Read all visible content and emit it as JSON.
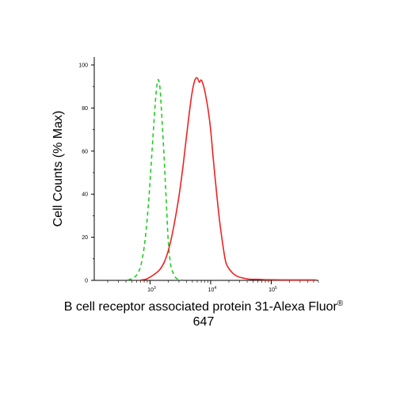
{
  "chart_data": {
    "type": "line",
    "title": "",
    "xlabel": "B cell receptor associated protein 31-Alexa Fluor",
    "xlabel_superscript": "®",
    "xlabel_line2": "647",
    "ylabel": "Cell Counts (% Max)",
    "x_scale": "log",
    "xlim": [
      120,
      600000
    ],
    "ylim": [
      0,
      100
    ],
    "y_ticks": [
      "0",
      "20",
      "40",
      "60",
      "80",
      "100"
    ],
    "x_ticks": [
      {
        "value": 1000,
        "base": "10",
        "exp": "3"
      },
      {
        "value": 10000,
        "base": "10",
        "exp": "4"
      },
      {
        "value": 100000,
        "base": "10",
        "exp": "5"
      }
    ],
    "grid": false,
    "legend": "none",
    "series": [
      {
        "color": "#22cc22",
        "style": "dashed",
        "x": [
          430,
          520,
          620,
          720,
          830,
          950,
          1050,
          1150,
          1250,
          1350,
          1450,
          1550,
          1700,
          1850,
          2000,
          2200,
          2450,
          2700,
          3000,
          3400
        ],
        "y": [
          0,
          1,
          3,
          8,
          19,
          37,
          55,
          72,
          86,
          93,
          90,
          78,
          58,
          37,
          18,
          7,
          3,
          1,
          0.5,
          0
        ]
      },
      {
        "color": "#ee2222",
        "style": "solid",
        "x": [
          700,
          850,
          1000,
          1200,
          1450,
          1750,
          2100,
          2500,
          3000,
          3500,
          4000,
          4500,
          5000,
          5500,
          6000,
          6500,
          7000,
          7500,
          8000,
          8500,
          9000,
          10000,
          11000,
          12500,
          14000,
          16000,
          18000,
          22000,
          27000,
          35000,
          45000,
          60000,
          80000,
          100000,
          200000,
          400000,
          550000
        ],
        "y": [
          0,
          0.5,
          1.5,
          3,
          5,
          9,
          16,
          26,
          39,
          53,
          67,
          79,
          88,
          93,
          94,
          92,
          93,
          91,
          88,
          84,
          80,
          70,
          57,
          41,
          28,
          16,
          8,
          4,
          2,
          1,
          0.5,
          0.5,
          0.3,
          0.3,
          0.2,
          0.2,
          0.2
        ]
      }
    ]
  }
}
